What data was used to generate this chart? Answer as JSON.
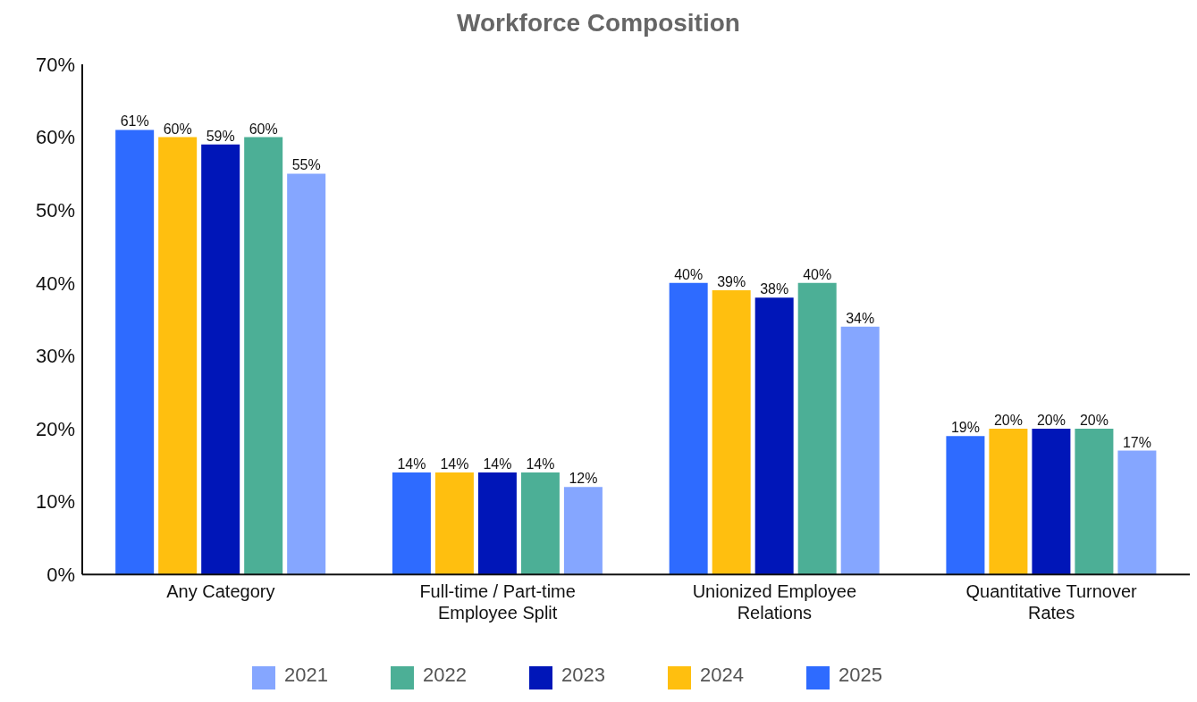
{
  "chart_data": {
    "type": "bar",
    "title": "Workforce Composition",
    "categories": [
      "Any Category",
      "Full-time / Part-time Employee Split",
      "Unionized Employee Relations",
      "Quantitative Turnover Rates"
    ],
    "series": [
      {
        "name": "2025",
        "color": "#2e6bff",
        "values": [
          61,
          14,
          40,
          19
        ],
        "value_labels": [
          "61%",
          "14%",
          "40%",
          "19%"
        ]
      },
      {
        "name": "2024",
        "color": "#ffbf0f",
        "values": [
          60,
          14,
          39,
          20
        ],
        "value_labels": [
          "60%",
          "14%",
          "39%",
          "20%"
        ]
      },
      {
        "name": "2023",
        "color": "#0016b8",
        "values": [
          59,
          14,
          38,
          20
        ],
        "value_labels": [
          "59%",
          "14%",
          "38%",
          "20%"
        ]
      },
      {
        "name": "2022",
        "color": "#4caf96",
        "values": [
          60,
          14,
          40,
          20
        ],
        "value_labels": [
          "60%",
          "14%",
          "40%",
          "20%"
        ]
      },
      {
        "name": "2021",
        "color": "#85a6ff",
        "values": [
          55,
          12,
          34,
          17
        ],
        "value_labels": [
          "55%",
          "12%",
          "34%",
          "17%"
        ]
      }
    ],
    "ylim": [
      0,
      70
    ],
    "yticks": [
      {
        "value": 0,
        "label": "0%"
      },
      {
        "value": 10,
        "label": "10%"
      },
      {
        "value": 20,
        "label": "20%"
      },
      {
        "value": 30,
        "label": "30%"
      },
      {
        "value": 40,
        "label": "40%"
      },
      {
        "value": 50,
        "label": "50%"
      },
      {
        "value": 60,
        "label": "60%"
      },
      {
        "value": 70,
        "label": "70%"
      }
    ],
    "grid": false,
    "legend": "bottom"
  }
}
